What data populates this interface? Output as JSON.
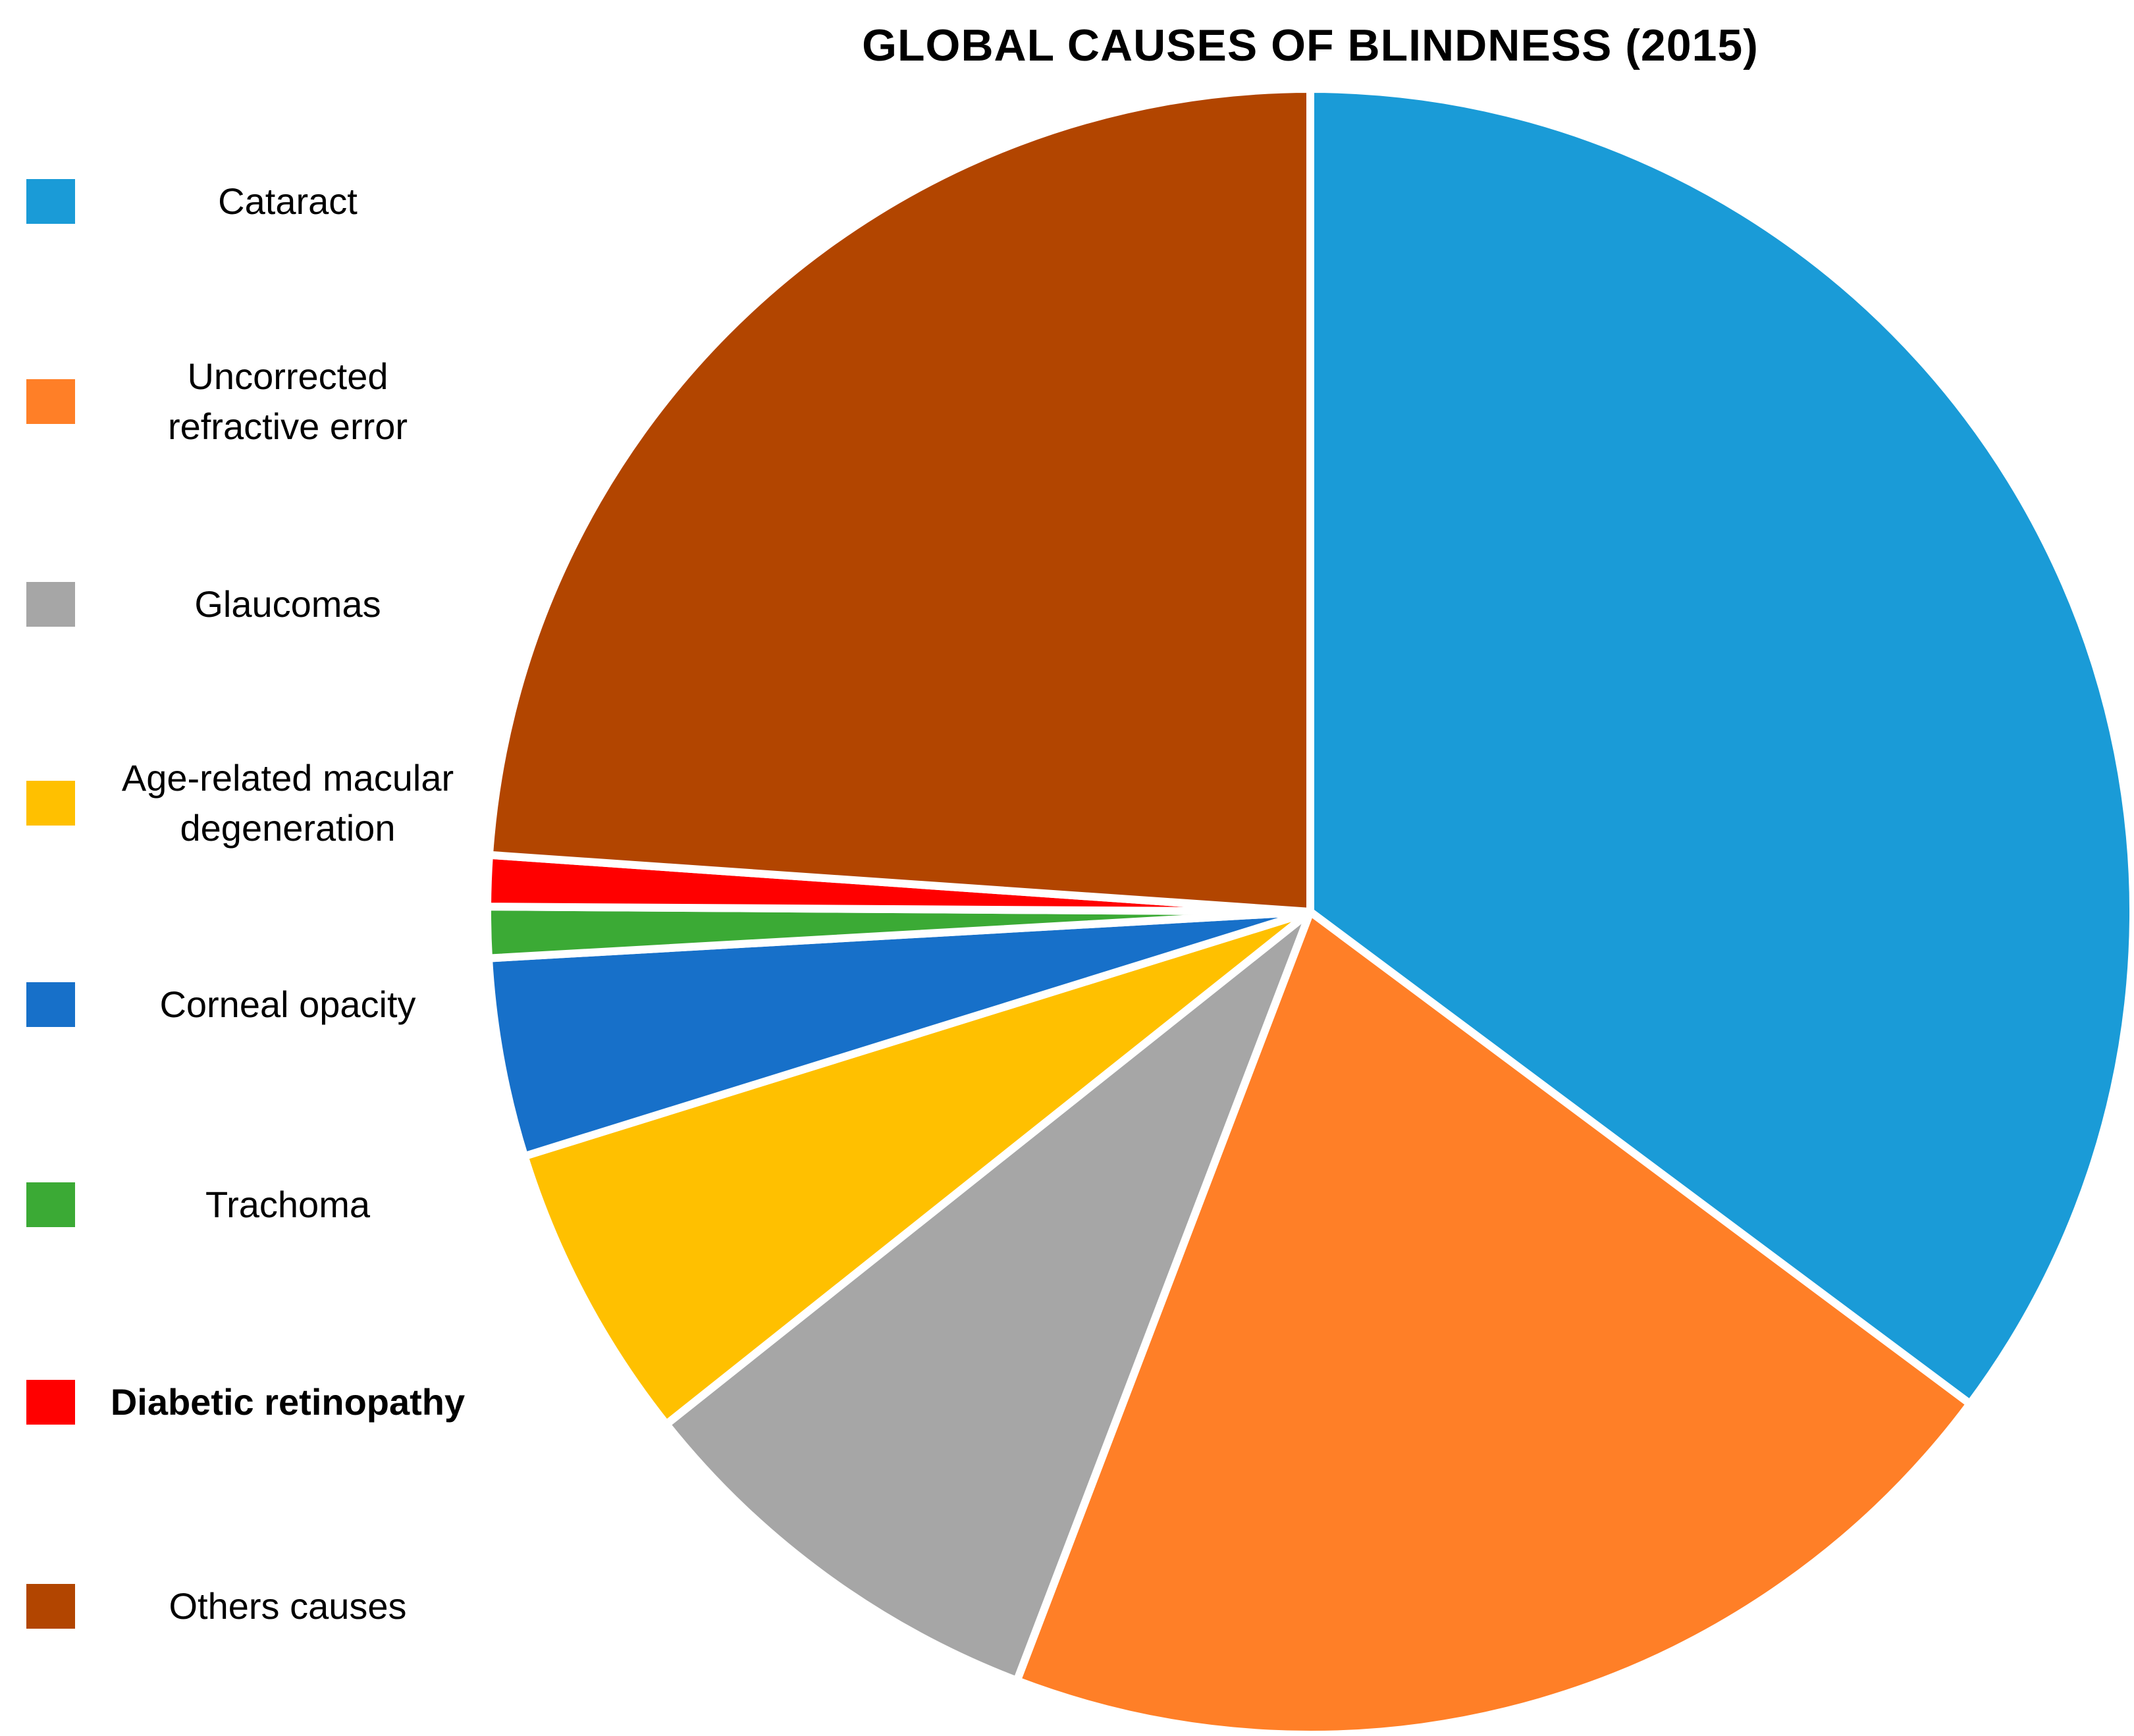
{
  "chart_data": {
    "type": "pie",
    "title": "GLOBAL CAUSES OF BLINDNESS (2015)",
    "legend_position": "left",
    "slices": [
      {
        "name": "Cataract",
        "value": 35.2,
        "color": "#1A9BD7"
      },
      {
        "name": "Uncorrected refractive error",
        "value": 20.6,
        "color": "#FF7F27"
      },
      {
        "name": "Glaucomas",
        "value": 8.5,
        "color": "#A6A6A6"
      },
      {
        "name": "Age-related macular degeneration",
        "value": 5.9,
        "color": "#FFC000"
      },
      {
        "name": "Corneal opacity",
        "value": 3.9,
        "color": "#1770C9"
      },
      {
        "name": "Trachoma",
        "value": 1.0,
        "color": "#3BAA35"
      },
      {
        "name": "Diabetic retinopathy",
        "value": 1.0,
        "color": "#FF0000"
      },
      {
        "name": "Others causes",
        "value": 23.9,
        "color": "#B24500"
      }
    ]
  },
  "legend": {
    "items": [
      {
        "label": "Cataract",
        "color": "#1A9BD7",
        "bold": false
      },
      {
        "label": "Uncorrected\nrefractive error",
        "color": "#FF7F27",
        "bold": false
      },
      {
        "label": "Glaucomas",
        "color": "#A6A6A6",
        "bold": false
      },
      {
        "label": "Age-related macular\ndegeneration",
        "color": "#FFC000",
        "bold": false
      },
      {
        "label": "Corneal opacity",
        "color": "#1770C9",
        "bold": false
      },
      {
        "label": "Trachoma",
        "color": "#3BAA35",
        "bold": false
      },
      {
        "label": "Diabetic retinopathy",
        "color": "#FF0000",
        "bold": true
      },
      {
        "label": "Others causes",
        "color": "#B24500",
        "bold": false
      }
    ]
  }
}
